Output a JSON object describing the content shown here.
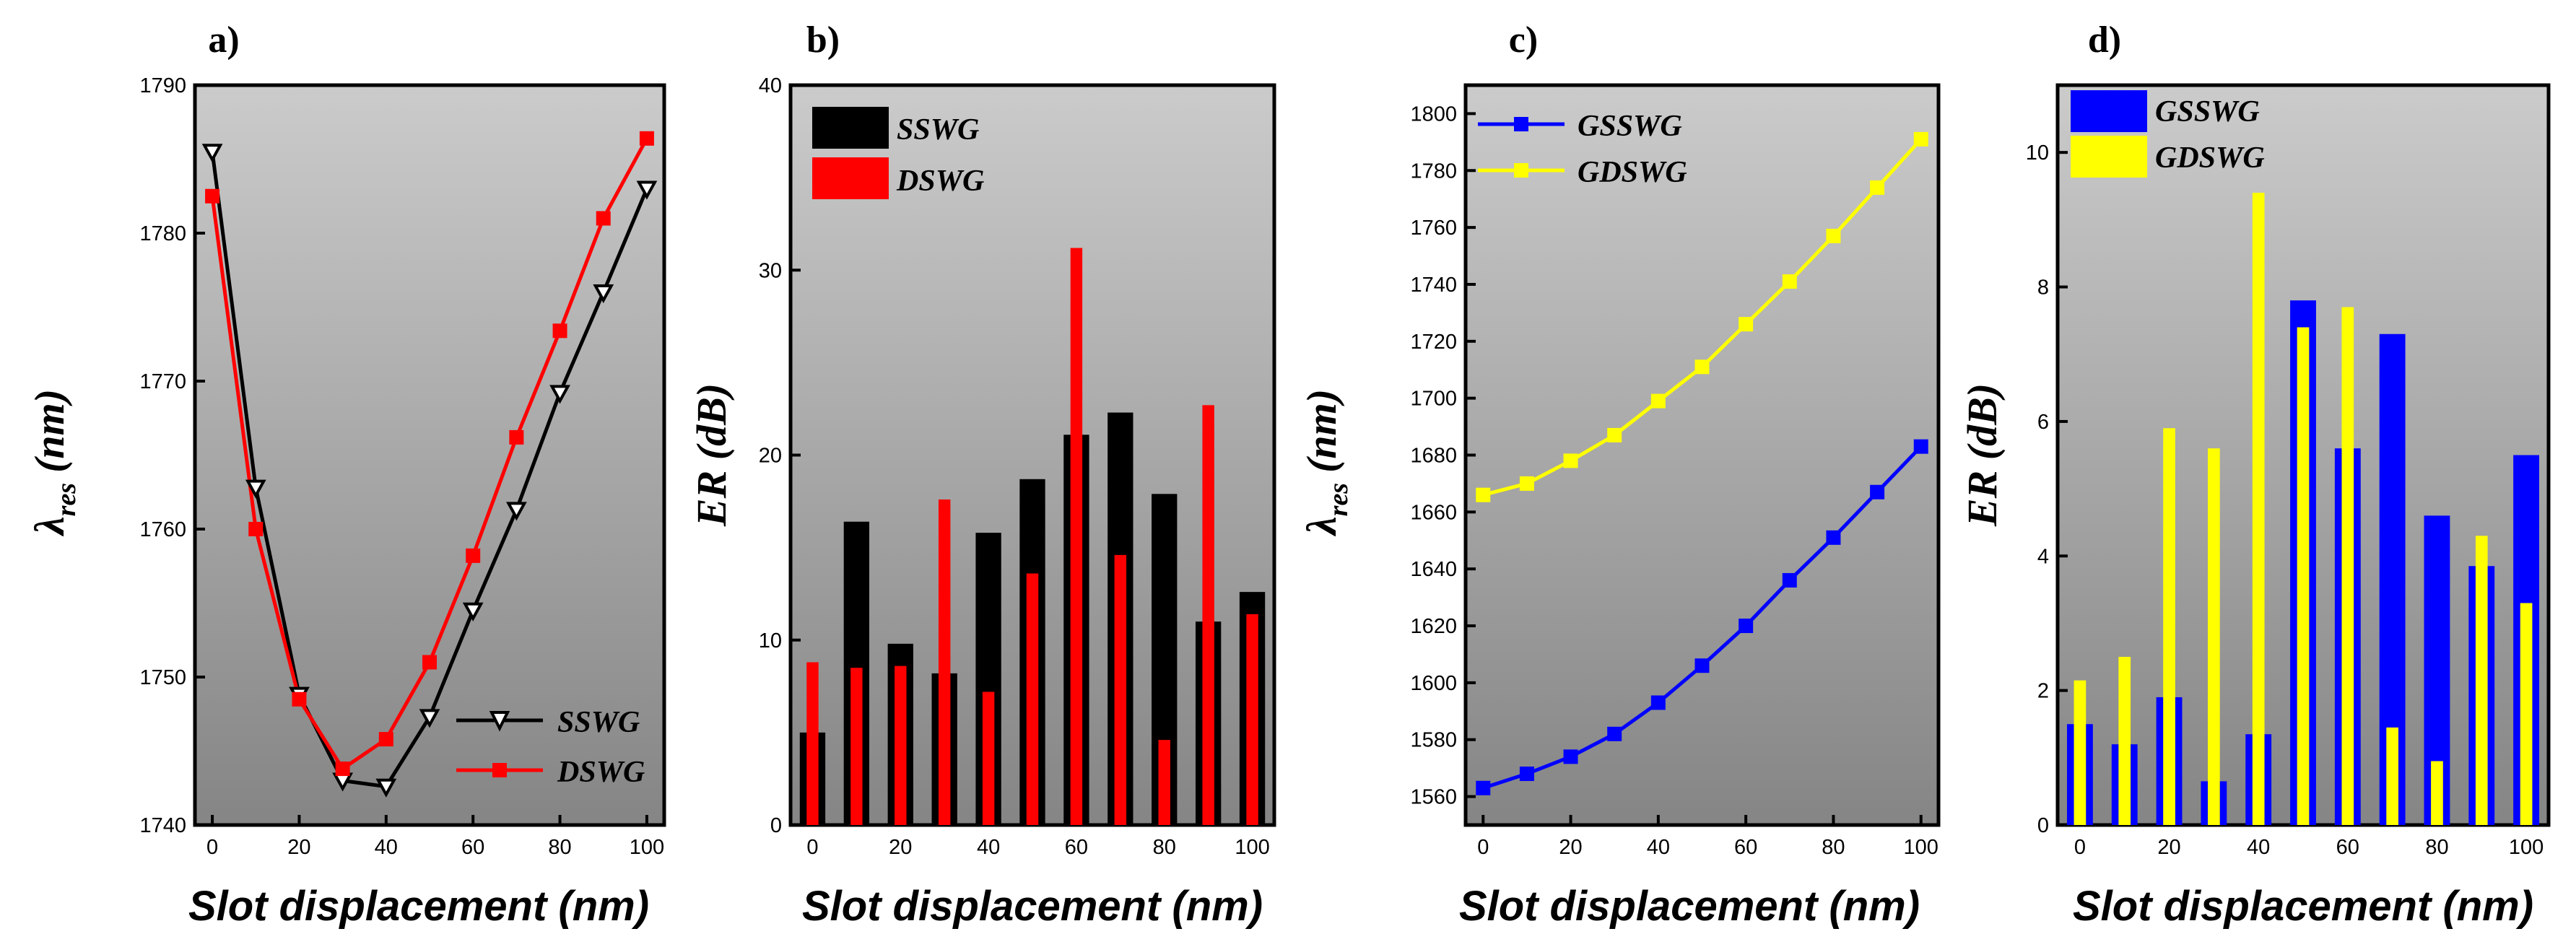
{
  "chart_data": [
    {
      "id": "a",
      "type": "line",
      "title": "a)",
      "xlabel": "Slot displacement (nm)",
      "ylabel_main": "λ",
      "ylabel_sub": "res",
      "ylabel_unit": "(nm)",
      "xlim": [
        -4,
        104
      ],
      "ylim": [
        1740,
        1790
      ],
      "xticks": [
        0,
        20,
        40,
        60,
        80,
        100
      ],
      "yticks": [
        1740,
        1750,
        1760,
        1770,
        1780,
        1790
      ],
      "x": [
        0,
        10,
        20,
        30,
        40,
        50,
        60,
        70,
        80,
        90,
        100
      ],
      "series": [
        {
          "name": "SSWG",
          "color": "#000000",
          "marker": "triangle-down-open",
          "values": [
            1785.5,
            1762.8,
            1748.8,
            1743.0,
            1742.6,
            1747.3,
            1754.5,
            1761.3,
            1769.2,
            1776.0,
            1783.0
          ]
        },
        {
          "name": "DSWG",
          "color": "#ff0000",
          "marker": "square",
          "values": [
            1782.5,
            1760.0,
            1748.5,
            1743.8,
            1745.8,
            1751.0,
            1758.2,
            1766.2,
            1773.4,
            1781.0,
            1786.4
          ]
        }
      ],
      "legend": "bottom-right"
    },
    {
      "id": "b",
      "type": "bar",
      "title": "b)",
      "xlabel": "Slot displacement (nm)",
      "ylabel": "ER (dB)",
      "xlim": [
        -5,
        105
      ],
      "ylim": [
        0,
        40
      ],
      "xticks": [
        0,
        20,
        40,
        60,
        80,
        100
      ],
      "yticks": [
        0,
        10,
        20,
        30,
        40
      ],
      "x": [
        0,
        10,
        20,
        30,
        40,
        50,
        60,
        70,
        80,
        90,
        100
      ],
      "series": [
        {
          "name": "SSWG",
          "color": "#000000",
          "width": "wide",
          "values": [
            5.0,
            16.4,
            9.8,
            8.2,
            15.8,
            18.7,
            21.1,
            22.3,
            17.9,
            11.0,
            12.6
          ]
        },
        {
          "name": "DSWG",
          "color": "#ff0000",
          "width": "narrow",
          "values": [
            8.8,
            8.5,
            8.6,
            17.6,
            7.2,
            13.6,
            31.2,
            14.6,
            4.6,
            22.7,
            11.4
          ]
        }
      ],
      "legend": "top-left"
    },
    {
      "id": "c",
      "type": "line",
      "title": "c)",
      "xlabel": "Slot displacement (nm)",
      "ylabel_main": "λ",
      "ylabel_sub": "res",
      "ylabel_unit": "(nm)",
      "xlim": [
        -4,
        104
      ],
      "ylim": [
        1550,
        1810
      ],
      "xticks": [
        0,
        20,
        40,
        60,
        80,
        100
      ],
      "yticks": [
        1560,
        1580,
        1600,
        1620,
        1640,
        1660,
        1680,
        1700,
        1720,
        1740,
        1760,
        1780,
        1800
      ],
      "x": [
        0,
        10,
        20,
        30,
        40,
        50,
        60,
        70,
        80,
        90,
        100
      ],
      "series": [
        {
          "name": "GSSWG",
          "color": "#0000ff",
          "marker": "square",
          "values": [
            1563,
            1568,
            1574,
            1582,
            1593,
            1606,
            1620,
            1636,
            1651,
            1667,
            1683
          ]
        },
        {
          "name": "GDSWG",
          "color": "#ffff00",
          "marker": "square",
          "values": [
            1666,
            1670,
            1678,
            1687,
            1699,
            1711,
            1726,
            1741,
            1757,
            1774,
            1791
          ]
        }
      ],
      "legend": "top-left"
    },
    {
      "id": "d",
      "type": "bar",
      "title": "d)",
      "xlabel": "Slot displacement (nm)",
      "ylabel": "ER (dB)",
      "xlim": [
        -5,
        105
      ],
      "ylim": [
        0,
        11
      ],
      "xticks": [
        0,
        20,
        40,
        60,
        80,
        100
      ],
      "yticks": [
        0,
        2,
        4,
        6,
        8,
        10
      ],
      "x": [
        0,
        10,
        20,
        30,
        40,
        50,
        60,
        70,
        80,
        90,
        100
      ],
      "series": [
        {
          "name": "GSSWG",
          "color": "#0000ff",
          "width": "wide",
          "values": [
            1.5,
            1.2,
            1.9,
            0.65,
            1.35,
            7.8,
            5.6,
            7.3,
            4.6,
            3.85,
            5.5
          ]
        },
        {
          "name": "GDSWG",
          "color": "#ffff00",
          "width": "narrow",
          "values": [
            2.15,
            2.5,
            5.9,
            5.6,
            9.4,
            7.4,
            7.7,
            1.45,
            0.95,
            4.3,
            3.3
          ]
        }
      ],
      "legend": "top-left"
    }
  ]
}
